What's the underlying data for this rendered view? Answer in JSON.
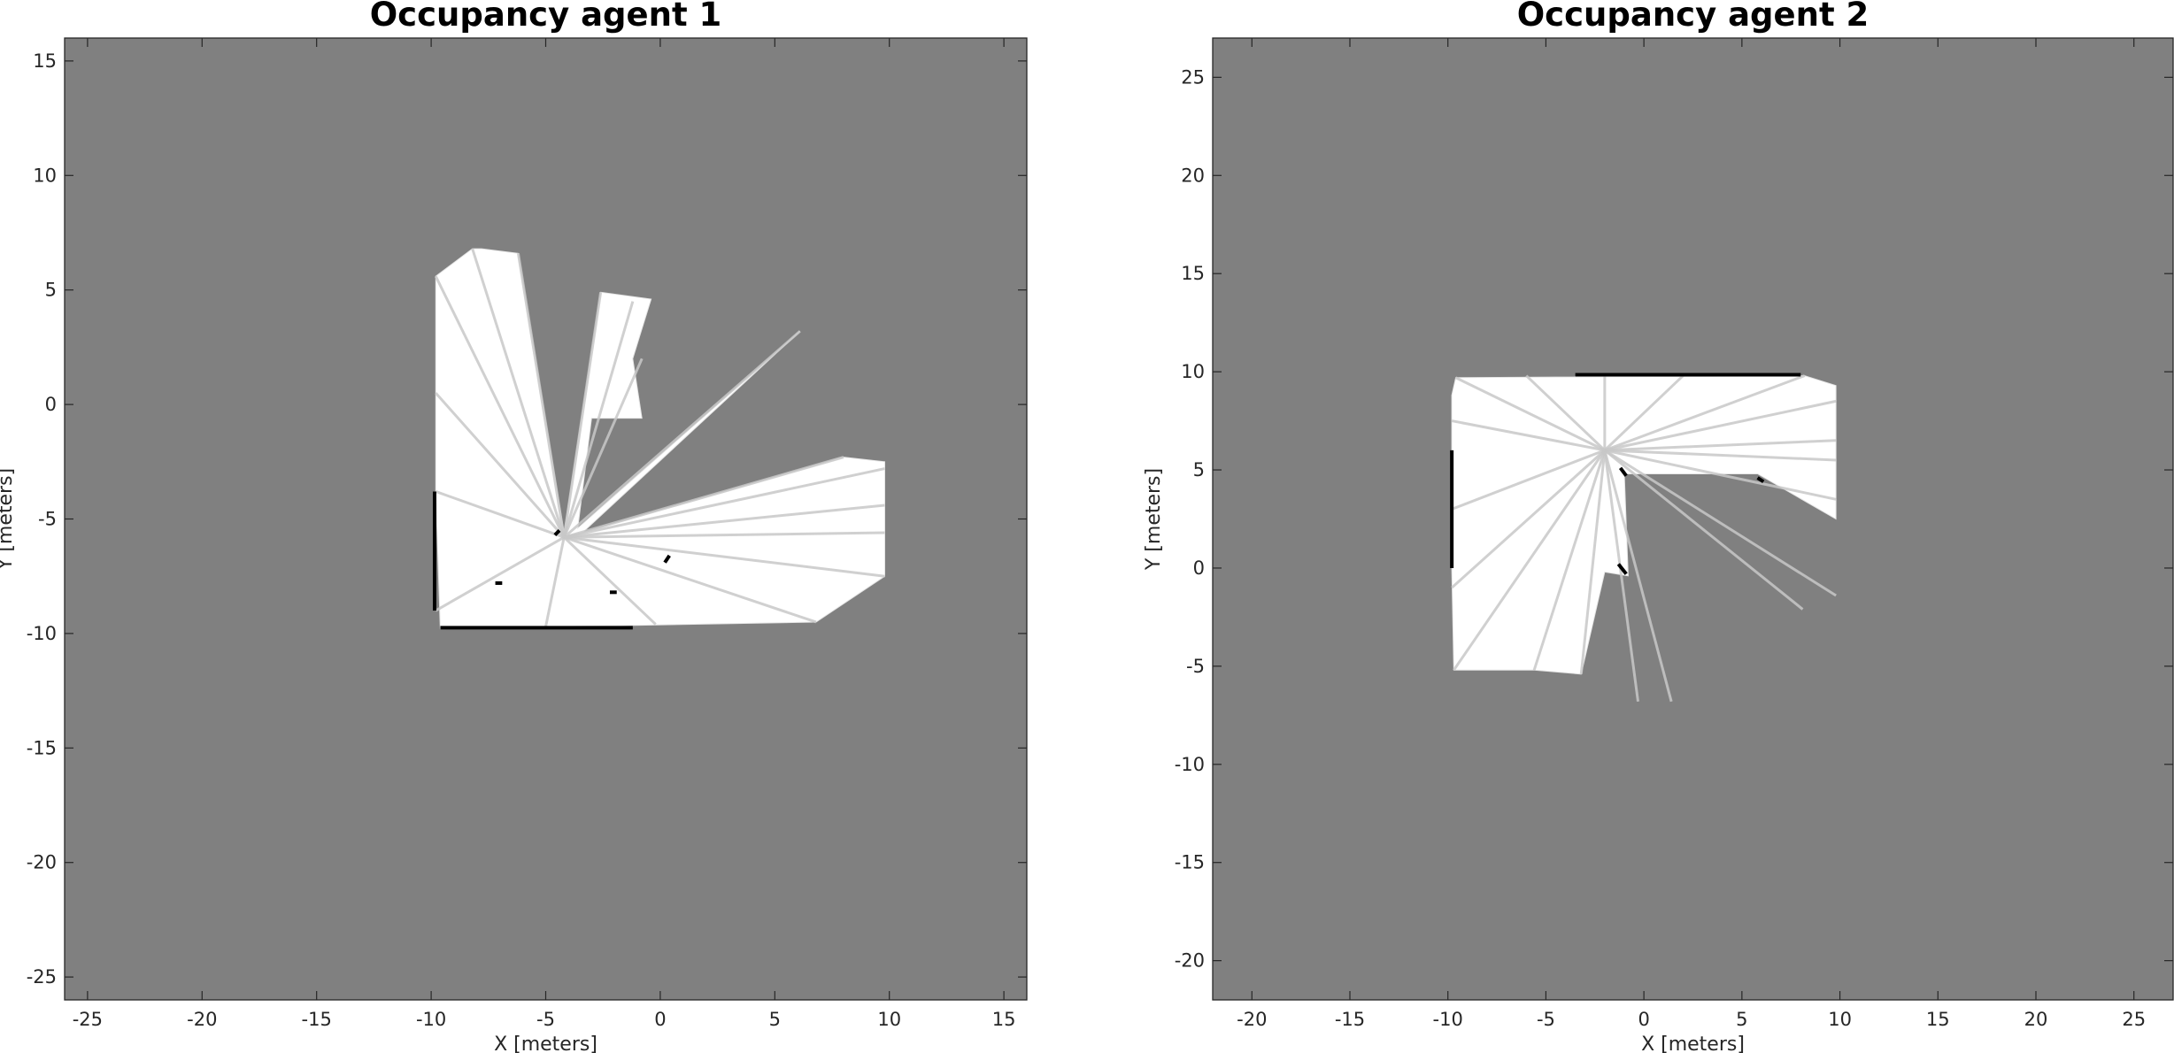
{
  "figure": {
    "background": "#ffffff"
  },
  "colors": {
    "unknown": "#808080",
    "free": "#ffffff",
    "occupied": "#000000",
    "ray": "#c8c8c8",
    "axis": "#262626"
  },
  "chart_data": [
    {
      "type": "heatmap",
      "subtype": "occupancy-grid",
      "title": "Occupancy agent 1",
      "xlabel": "X [meters]",
      "ylabel": "Y [meters]",
      "xlim": [
        -26,
        16
      ],
      "ylim": [
        -26,
        16
      ],
      "xticks": [
        -25,
        -20,
        -15,
        -10,
        -5,
        0,
        5,
        10,
        15
      ],
      "yticks": [
        15,
        10,
        5,
        0,
        -5,
        -10,
        -15,
        -20,
        -25
      ],
      "colormap": "gray",
      "grid": false,
      "sensor_origins": [
        [
          -4.2,
          -5.8
        ],
        [
          -3.8,
          -5.6
        ]
      ],
      "free_polygon": [
        [
          -9.8,
          5.6
        ],
        [
          -8.2,
          6.8
        ],
        [
          -7.8,
          6.8
        ],
        [
          -6.2,
          6.6
        ],
        [
          -4.2,
          -5.6
        ],
        [
          -2.6,
          4.9
        ],
        [
          -0.4,
          4.6
        ],
        [
          -1.2,
          2.0
        ],
        [
          -0.8,
          -0.6
        ],
        [
          -3.0,
          -0.6
        ],
        [
          -3.6,
          -5.4
        ],
        [
          6.1,
          3.2
        ],
        [
          -3.4,
          -5.6
        ],
        [
          8.0,
          -2.3
        ],
        [
          9.8,
          -2.5
        ],
        [
          9.8,
          -7.5
        ],
        [
          6.8,
          -9.5
        ],
        [
          -9.6,
          -9.8
        ],
        [
          -9.8,
          -3.8
        ],
        [
          -9.8,
          -0.4
        ]
      ],
      "rays": [
        [
          -9.8,
          5.6
        ],
        [
          -8.2,
          6.8
        ],
        [
          -6.2,
          6.6
        ],
        [
          -2.6,
          4.9
        ],
        [
          -1.2,
          4.5
        ],
        [
          -0.8,
          2.0
        ],
        [
          6.1,
          3.2
        ],
        [
          8.0,
          -2.3
        ],
        [
          9.8,
          -2.8
        ],
        [
          9.8,
          -4.4
        ],
        [
          9.8,
          -5.6
        ],
        [
          9.8,
          -7.5
        ],
        [
          6.8,
          -9.5
        ],
        [
          -0.2,
          -9.6
        ],
        [
          -5.0,
          -9.7
        ],
        [
          -9.8,
          -9.0
        ],
        [
          -9.8,
          -3.8
        ],
        [
          -9.8,
          0.5
        ]
      ],
      "obstacles": [
        [
          [
            -9.85,
            -3.8
          ],
          [
            -9.85,
            -9.0
          ]
        ],
        [
          [
            -9.6,
            -9.75
          ],
          [
            -1.2,
            -9.75
          ]
        ],
        [
          [
            -4.6,
            -5.7
          ],
          [
            -4.4,
            -5.5
          ]
        ],
        [
          [
            -2.2,
            -8.2
          ],
          [
            -1.9,
            -8.2
          ]
        ],
        [
          [
            0.2,
            -6.9
          ],
          [
            0.4,
            -6.6
          ]
        ],
        [
          [
            -7.2,
            -7.8
          ],
          [
            -6.9,
            -7.8
          ]
        ]
      ]
    },
    {
      "type": "heatmap",
      "subtype": "occupancy-grid",
      "title": "Occupancy agent 2",
      "xlabel": "X [meters]",
      "ylabel": "Y [meters]",
      "xlim": [
        -22,
        27
      ],
      "ylim": [
        -22,
        27
      ],
      "xticks": [
        -20,
        -15,
        -10,
        -5,
        0,
        5,
        10,
        15,
        20,
        25
      ],
      "yticks": [
        25,
        20,
        15,
        10,
        5,
        0,
        -5,
        -10,
        -15,
        -20
      ],
      "colormap": "gray",
      "grid": false,
      "sensor_origins": [
        [
          -2.0,
          6.0
        ]
      ],
      "free_polygon": [
        [
          -9.6,
          9.7
        ],
        [
          8.2,
          9.8
        ],
        [
          9.8,
          9.3
        ],
        [
          9.8,
          2.5
        ],
        [
          5.8,
          4.8
        ],
        [
          -1.0,
          4.8
        ],
        [
          -0.8,
          -0.4
        ],
        [
          -2.0,
          -0.2
        ],
        [
          -3.2,
          -5.4
        ],
        [
          -5.6,
          -5.2
        ],
        [
          -9.7,
          -5.2
        ],
        [
          -9.8,
          0.0
        ],
        [
          -9.8,
          8.8
        ]
      ],
      "rays": [
        [
          -9.6,
          9.7
        ],
        [
          -6.0,
          9.8
        ],
        [
          -2.0,
          9.8
        ],
        [
          2.0,
          9.8
        ],
        [
          8.2,
          9.8
        ],
        [
          9.8,
          8.5
        ],
        [
          9.8,
          6.5
        ],
        [
          9.8,
          5.5
        ],
        [
          9.8,
          3.5
        ],
        [
          9.8,
          -1.4
        ],
        [
          8.1,
          -2.1
        ],
        [
          1.4,
          -6.8
        ],
        [
          -0.3,
          -6.8
        ],
        [
          -3.2,
          -5.4
        ],
        [
          -5.6,
          -5.2
        ],
        [
          -9.7,
          -5.2
        ],
        [
          -9.8,
          -1.0
        ],
        [
          -9.8,
          3.0
        ],
        [
          -9.8,
          7.5
        ]
      ],
      "obstacles": [
        [
          [
            -3.5,
            9.85
          ],
          [
            8.0,
            9.85
          ]
        ],
        [
          [
            -9.8,
            6.0
          ],
          [
            -9.8,
            0.0
          ]
        ],
        [
          [
            -1.2,
            5.1
          ],
          [
            -0.9,
            4.7
          ]
        ],
        [
          [
            5.8,
            4.6
          ],
          [
            6.1,
            4.4
          ]
        ],
        [
          [
            -1.3,
            0.2
          ],
          [
            -0.9,
            -0.3
          ]
        ]
      ]
    }
  ]
}
